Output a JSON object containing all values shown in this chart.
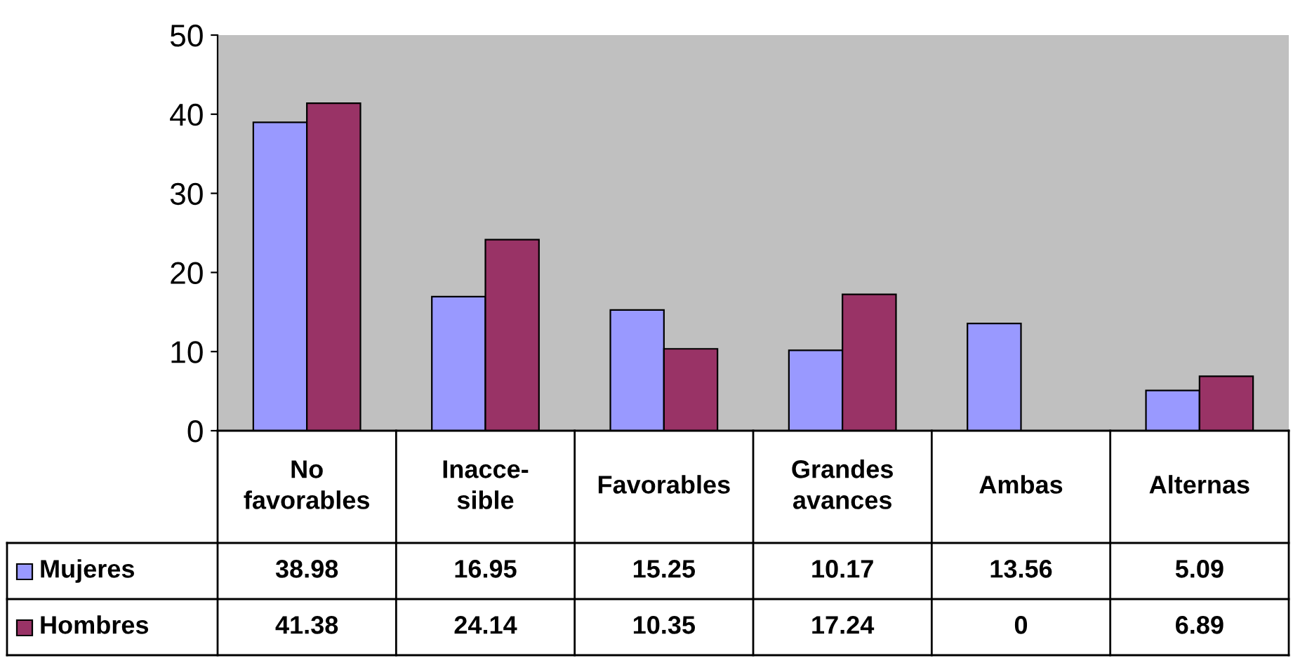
{
  "chart_data": {
    "type": "bar",
    "categories": [
      "No\nfavorables",
      "Inacce-\nsible",
      "Favorables",
      "Grandes\navances",
      "Ambas",
      "Alternas"
    ],
    "series": [
      {
        "name": "Mujeres",
        "color": "#9999ff",
        "values": [
          38.98,
          16.95,
          15.25,
          10.17,
          13.56,
          5.09
        ]
      },
      {
        "name": "Hombres",
        "color": "#993366",
        "values": [
          41.38,
          24.14,
          10.35,
          17.24,
          0,
          6.89
        ]
      }
    ],
    "ylim": [
      0,
      50
    ],
    "yticks": [
      0,
      10,
      20,
      30,
      40,
      50
    ],
    "grid": false,
    "legend": "bottom left",
    "data_labels": true
  }
}
